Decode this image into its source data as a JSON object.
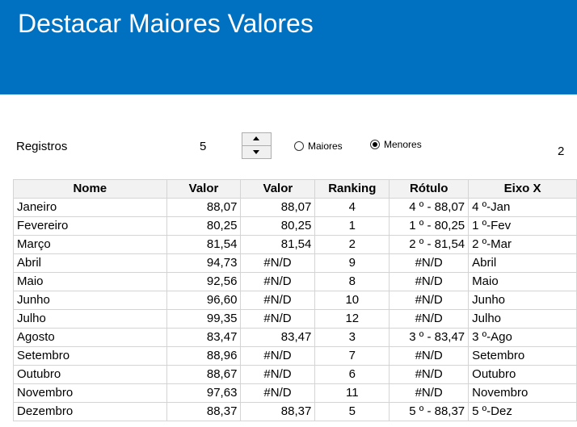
{
  "header": {
    "title": "Destacar Maiores Valores"
  },
  "controls": {
    "registros_label": "Registros",
    "registros_value": "5",
    "radio_maiores": "Maiores",
    "radio_menores": "Menores",
    "selected": "Menores",
    "side_value": "2"
  },
  "table": {
    "columns": [
      "Nome",
      "Valor",
      "Valor",
      "Ranking",
      "Rótulo",
      "Eixo X"
    ],
    "rows": [
      [
        "Janeiro",
        "88,07",
        "88,07",
        "4",
        "4 º - 88,07",
        "4 º-Jan"
      ],
      [
        "Fevereiro",
        "80,25",
        "80,25",
        "1",
        "1 º - 80,25",
        "1 º-Fev"
      ],
      [
        "Março",
        "81,54",
        "81,54",
        "2",
        "2 º - 81,54",
        "2 º-Mar"
      ],
      [
        "Abril",
        "94,73",
        "#N/D",
        "9",
        "#N/D",
        "Abril"
      ],
      [
        "Maio",
        "92,56",
        "#N/D",
        "8",
        "#N/D",
        "Maio"
      ],
      [
        "Junho",
        "96,60",
        "#N/D",
        "10",
        "#N/D",
        "Junho"
      ],
      [
        "Julho",
        "99,35",
        "#N/D",
        "12",
        "#N/D",
        "Julho"
      ],
      [
        "Agosto",
        "83,47",
        "83,47",
        "3",
        "3 º - 83,47",
        "3 º-Ago"
      ],
      [
        "Setembro",
        "88,96",
        "#N/D",
        "7",
        "#N/D",
        "Setembro"
      ],
      [
        "Outubro",
        "88,67",
        "#N/D",
        "6",
        "#N/D",
        "Outubro"
      ],
      [
        "Novembro",
        "97,63",
        "#N/D",
        "11",
        "#N/D",
        "Novembro"
      ],
      [
        "Dezembro",
        "88,37",
        "88,37",
        "5",
        "5 º - 88,37",
        "5 º-Dez"
      ]
    ]
  },
  "colors": {
    "banner": "#0070c0",
    "header_bg": "#f2f2f2",
    "grid": "#d4d4d4"
  }
}
